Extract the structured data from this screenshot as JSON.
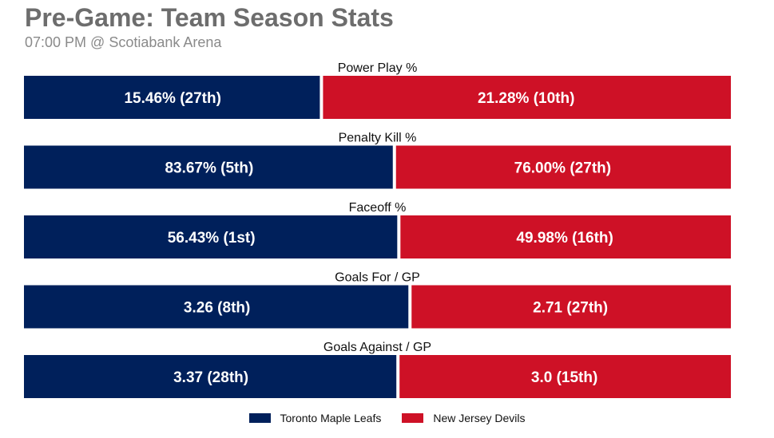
{
  "header": {
    "title": "Pre-Game: Team Season Stats",
    "subtitle": "07:00 PM @ Scotiabank Arena"
  },
  "colors": {
    "team_a": "#00205b",
    "team_b": "#ce1126"
  },
  "chart_data": {
    "type": "bar",
    "orientation": "horizontal-stacked-split",
    "categories": [
      "Power Play %",
      "Penalty Kill %",
      "Faceoff %",
      "Goals For / GP",
      "Goals Against / GP"
    ],
    "series": [
      {
        "name": "Toronto Maple Leafs",
        "values": [
          15.46,
          83.67,
          56.43,
          3.26,
          3.37
        ],
        "labels": [
          "15.46% (27th)",
          "83.67% (5th)",
          "56.43% (1st)",
          "3.26 (8th)",
          "3.37 (28th)"
        ]
      },
      {
        "name": "New Jersey Devils",
        "values": [
          21.28,
          76.0,
          49.98,
          2.71,
          3.0
        ],
        "labels": [
          "21.28% (10th)",
          "76.00% (27th)",
          "49.98% (16th)",
          "2.71 (27th)",
          "3.0 (15th)"
        ]
      }
    ],
    "legend_position": "bottom-center",
    "grid": false
  }
}
